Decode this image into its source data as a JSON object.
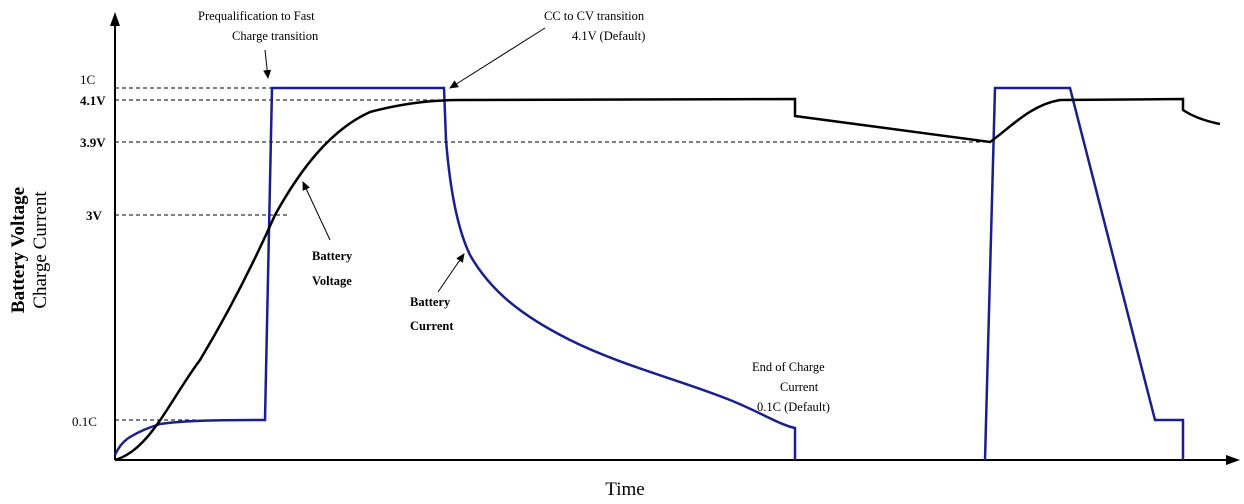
{
  "axes": {
    "y_label_bold": "Battery Voltage",
    "y_label_regular": "Charge Current",
    "x_label": "Time"
  },
  "ticks": {
    "c1": "1C",
    "v41": "4.1V",
    "v39": "3.9V",
    "v3": "3V",
    "c01": "0.1C"
  },
  "annotations": {
    "prequal_line1": "Prequalification to Fast",
    "prequal_line2": "Charge  transition",
    "cccv_line1": "CC to CV transition",
    "cccv_line2": "4.1V (Default)",
    "bv_line1": "Battery",
    "bv_line2": "Voltage",
    "bc_line1": "Battery",
    "bc_line2": "Current",
    "eoc_line1": "End of Charge",
    "eoc_line2": "Current",
    "eoc_line3": "0.1C (Default)"
  },
  "colors": {
    "voltage_line": "#000000",
    "current_line": "#1a1f8c",
    "background": "#ffffff"
  }
}
